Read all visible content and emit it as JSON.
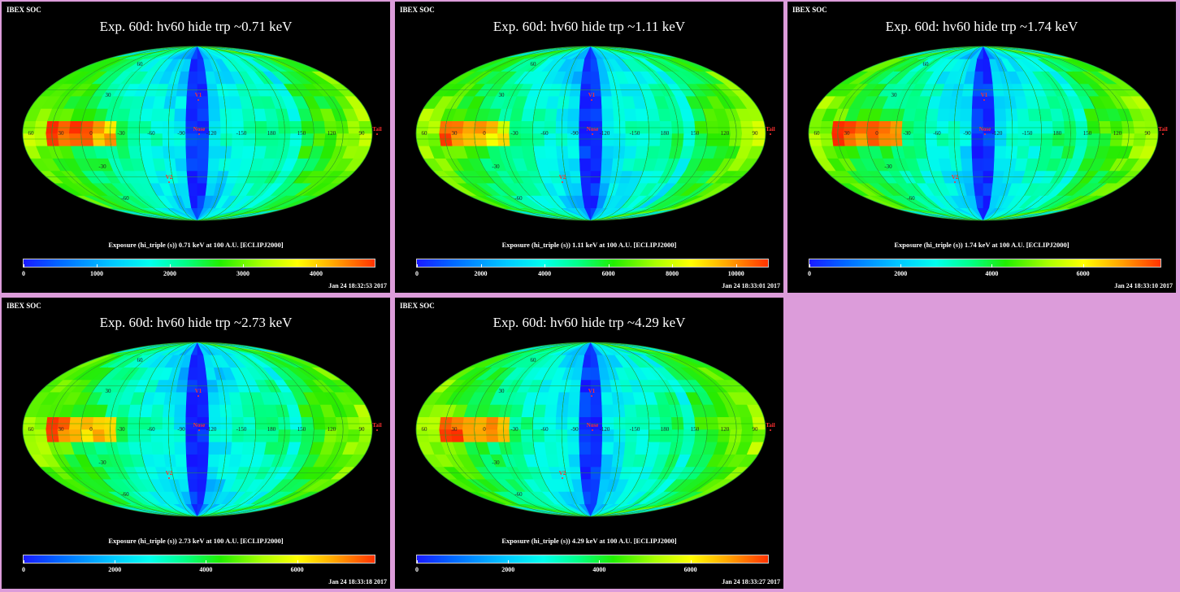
{
  "header": "IBEX SOC",
  "map_labels": {
    "graticule": [
      "60",
      "30",
      "0",
      "-30",
      "-60",
      "-90",
      "-120",
      "-150",
      "180",
      "150",
      "120",
      "90"
    ],
    "lat": [
      "60",
      "30",
      "-30",
      "-60"
    ],
    "v1": "V1",
    "v2": "V2",
    "nose": "Nose",
    "tail": "Tail"
  },
  "colors": {
    "frame": "#dc9cda",
    "panel_bg": "#000000",
    "marker": "#ff3030"
  },
  "panels": [
    {
      "title": "Exp.   60d: hv60 hide trp ~0.71 keV",
      "subtitle": "Exposure (hi_triple (s))  0.71 keV at 100 A.U. [ECLIPJ2000]",
      "colorbar_ticks": [
        "0",
        "1000",
        "2000",
        "3000",
        "4000"
      ],
      "colorbar_max": 4800,
      "timestamp": "Jan 24 18:32:53 2017"
    },
    {
      "title": "Exp.   60d: hv60 hide trp ~1.11 keV",
      "subtitle": "Exposure (hi_triple (s))  1.11 keV at 100 A.U. [ECLIPJ2000]",
      "colorbar_ticks": [
        "0",
        "2000",
        "4000",
        "6000",
        "8000",
        "10000"
      ],
      "colorbar_max": 11000,
      "timestamp": "Jan 24 18:33:01 2017"
    },
    {
      "title": "Exp.   60d: hv60 hide trp ~1.74 keV",
      "subtitle": "Exposure (hi_triple (s))  1.74 keV at 100 A.U. [ECLIPJ2000]",
      "colorbar_ticks": [
        "0",
        "2000",
        "4000",
        "6000"
      ],
      "colorbar_max": 7700,
      "timestamp": "Jan 24 18:33:10 2017"
    },
    {
      "title": "Exp.   60d: hv60 hide trp ~2.73 keV",
      "subtitle": "Exposure (hi_triple (s))  2.73 keV at 100 A.U. [ECLIPJ2000]",
      "colorbar_ticks": [
        "0",
        "2000",
        "4000",
        "6000"
      ],
      "colorbar_max": 7700,
      "timestamp": "Jan 24 18:33:18 2017"
    },
    {
      "title": "Exp.   60d: hv60 hide trp ~4.29 keV",
      "subtitle": "Exposure (hi_triple (s))  4.29 keV at 100 A.U. [ECLIPJ2000]",
      "colorbar_ticks": [
        "0",
        "2000",
        "4000",
        "6000"
      ],
      "colorbar_max": 7700,
      "timestamp": "Jan 24 18:33:27 2017"
    }
  ]
}
